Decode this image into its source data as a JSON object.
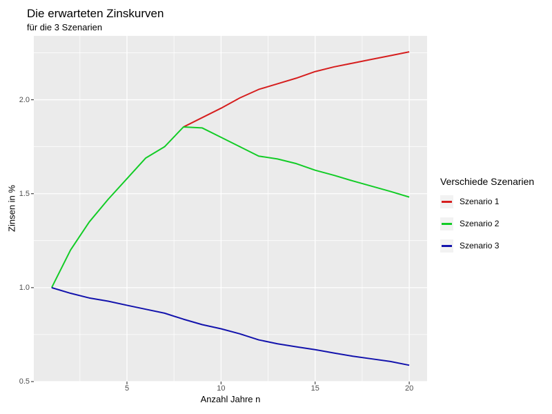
{
  "chart_data": {
    "type": "line",
    "title": "Die erwarteten Zinskurven",
    "subtitle": "für die 3 Szenarien",
    "xlabel": "Anzahl Jahre n",
    "ylabel": "Zinsen in %",
    "legend_title": "Verschiede Szenarien",
    "legend_position": "right",
    "grid": "on",
    "panel_bg": "#EBEBEB",
    "grid_color": "#FFFFFF",
    "tick_color": "#333333",
    "axis_text_color": "#4D4D4D",
    "xlim": [
      0.05,
      20.95
    ],
    "ylim": [
      0.5,
      2.34
    ],
    "x_ticks": [
      {
        "value": 5,
        "label": "5"
      },
      {
        "value": 10,
        "label": "10"
      },
      {
        "value": 15,
        "label": "15"
      },
      {
        "value": 20,
        "label": "20"
      }
    ],
    "y_ticks": [
      {
        "value": 0.5,
        "label": "0.5"
      },
      {
        "value": 1.0,
        "label": "1.0"
      },
      {
        "value": 1.5,
        "label": "1.5"
      },
      {
        "value": 2.0,
        "label": "2.0"
      }
    ],
    "x_minor": [
      2.5,
      7.5,
      12.5,
      17.5
    ],
    "y_minor": [
      0.75,
      1.25,
      1.75,
      2.25
    ],
    "series": [
      {
        "name": "Szenario 1",
        "color": "#D61E1E",
        "x": [
          8,
          9,
          10,
          11,
          12,
          13,
          14,
          15,
          16,
          17,
          18,
          19,
          20
        ],
        "y": [
          1.855,
          1.905,
          1.955,
          2.01,
          2.055,
          2.085,
          2.115,
          2.15,
          2.175,
          2.195,
          2.215,
          2.235,
          2.255
        ]
      },
      {
        "name": "Szenario 2",
        "color": "#12CC26",
        "x": [
          1,
          2,
          3,
          4,
          5,
          6,
          7,
          8,
          9,
          10,
          11,
          12,
          13,
          14,
          15,
          16,
          17,
          18,
          19,
          20
        ],
        "y": [
          1.0,
          1.2,
          1.35,
          1.47,
          1.58,
          1.69,
          1.75,
          1.855,
          1.85,
          1.8,
          1.75,
          1.7,
          1.685,
          1.66,
          1.625,
          1.598,
          1.568,
          1.54,
          1.512,
          1.482
        ]
      },
      {
        "name": "Szenario 3",
        "color": "#1212AC",
        "x": [
          1,
          2,
          3,
          4,
          5,
          6,
          7,
          8,
          9,
          10,
          11,
          12,
          13,
          14,
          15,
          16,
          17,
          18,
          19,
          20
        ],
        "y": [
          1.0,
          0.97,
          0.945,
          0.928,
          0.906,
          0.885,
          0.864,
          0.832,
          0.803,
          0.781,
          0.754,
          0.722,
          0.701,
          0.685,
          0.67,
          0.652,
          0.635,
          0.621,
          0.607,
          0.587
        ]
      }
    ]
  }
}
